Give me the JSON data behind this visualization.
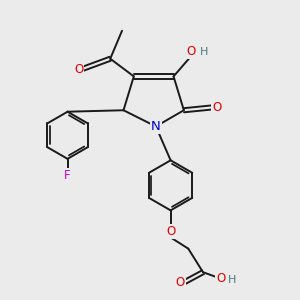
{
  "bg_color": "#ebebeb",
  "bond_color": "#1a1a1a",
  "bond_width": 1.4,
  "atom_colors": {
    "O": "#e00000",
    "N": "#0000cc",
    "F": "#cc00cc",
    "C": "#1a1a1a",
    "H": "#4a7a7a"
  },
  "font_size": 8.5,
  "fig_size": [
    3.0,
    3.0
  ],
  "dpi": 100
}
